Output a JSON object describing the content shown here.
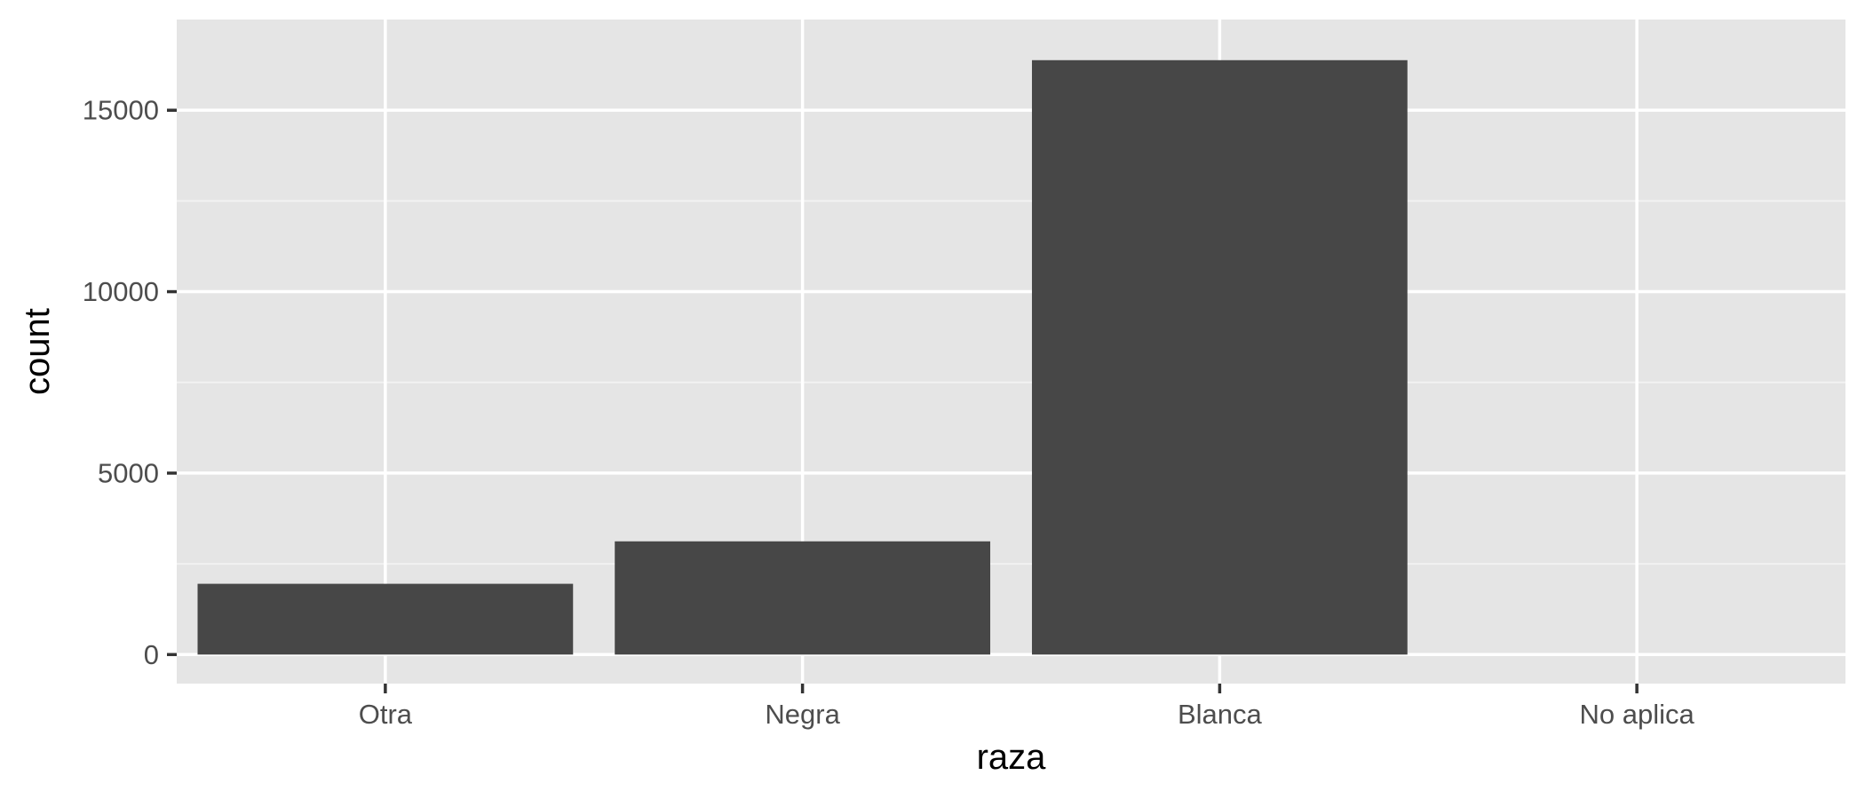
{
  "chart_data": {
    "type": "bar",
    "categories": [
      "Otra",
      "Negra",
      "Blanca",
      "No aplica"
    ],
    "values": [
      1950,
      3120,
      16380,
      0
    ],
    "xlabel": "raza",
    "ylabel": "count",
    "ylim": [
      -800,
      17500
    ],
    "yticks": [
      0,
      5000,
      10000,
      15000
    ],
    "ytick_labels": [
      "0",
      "5000",
      "10000",
      "15000"
    ],
    "grid": true,
    "legend": "none"
  },
  "colors": {
    "panel_background": "#e5e5e5",
    "grid_major": "#ffffff",
    "grid_minor": "#f2f2f2",
    "bar_fill": "#474747",
    "axis_ticks": "#333333",
    "tick_text": "#4d4d4d",
    "title_text": "#000000"
  }
}
